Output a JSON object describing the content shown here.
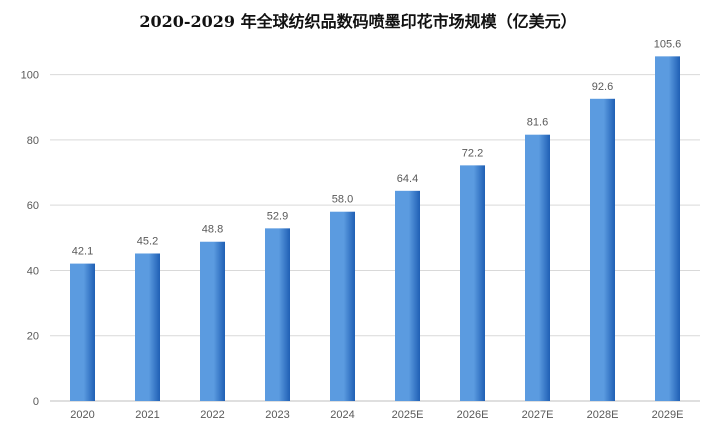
{
  "chart_data": {
    "type": "bar",
    "title": "2020-2029 年全球纺织品数码喷墨印花市场规模（亿美元）",
    "xlabel": "",
    "ylabel": "",
    "categories": [
      "2020",
      "2021",
      "2022",
      "2023",
      "2024",
      "2025E",
      "2026E",
      "2027E",
      "2028E",
      "2029E"
    ],
    "values": [
      42.1,
      45.2,
      48.8,
      52.9,
      58.0,
      64.4,
      72.2,
      81.6,
      92.6,
      105.6
    ],
    "value_labels": [
      "42.1",
      "45.2",
      "48.8",
      "52.9",
      "58.0",
      "64.4",
      "72.2",
      "81.6",
      "92.6",
      "105.6"
    ],
    "ylim": [
      0,
      110
    ],
    "yticks": [
      0,
      20,
      40,
      60,
      80,
      100
    ],
    "ytick_labels": [
      "0",
      "20",
      "40",
      "60",
      "80",
      "100"
    ],
    "grid": true,
    "legend": "none",
    "colors": {
      "bar_light": "#5b9be0",
      "bar_dark": "#1f5fb4",
      "grid": "#d9d9d9",
      "axis": "#bfbfbf",
      "label": "#595959"
    }
  }
}
